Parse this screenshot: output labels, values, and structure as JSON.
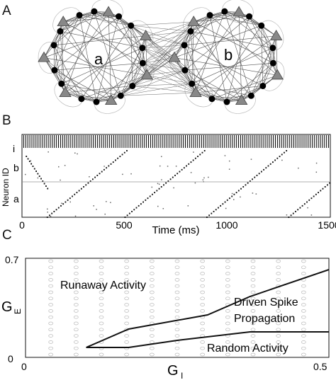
{
  "panels": {
    "a": {
      "letter": "A",
      "cluster_a_label": "a",
      "cluster_b_label": "b"
    },
    "b": {
      "letter": "B",
      "ylabel": "Neuron ID",
      "xlabel": "Time (ms)",
      "group_labels": [
        "i",
        "b",
        "a"
      ],
      "xticks": [
        "0",
        "500",
        "1000",
        "1500"
      ]
    },
    "c": {
      "letter": "C",
      "ylabel": "G",
      "ylabel_sub": "E",
      "xlabel": "G",
      "xlabel_sub": "I",
      "x_tick_left": "0",
      "x_tick_right": "0.5",
      "y_tick_top": "0.7",
      "y_tick_bottom": "0",
      "region_labels": {
        "runaway": "Runaway Activity",
        "driven_line1": "Driven Spike",
        "driven_line2": "Propagation",
        "random": "Random Activity"
      }
    }
  },
  "chart_data": [
    {
      "type": "scatter",
      "xlabel": "Time (ms)",
      "ylabel": "Neuron ID",
      "xlim": [
        0,
        1500
      ],
      "x_ticks": [
        0,
        500,
        1000,
        1500
      ],
      "groups": [
        "i",
        "b",
        "a"
      ],
      "wave_starts_ms": [
        120,
        500,
        900,
        1300
      ],
      "wave_period_ms": 400
    },
    {
      "type": "line",
      "xlabel": "G_I",
      "ylabel": "G_E",
      "xlim": [
        0,
        0.5
      ],
      "ylim": [
        0,
        0.7
      ],
      "grid": true,
      "series": [
        {
          "x": [
            0.1,
            0.17,
            0.3,
            0.37,
            0.5
          ],
          "y": [
            0.07,
            0.2,
            0.3,
            0.43,
            0.62
          ]
        },
        {
          "x": [
            0.1,
            0.17,
            0.25,
            0.37,
            0.5
          ],
          "y": [
            0.07,
            0.07,
            0.12,
            0.18,
            0.18
          ]
        }
      ]
    }
  ]
}
